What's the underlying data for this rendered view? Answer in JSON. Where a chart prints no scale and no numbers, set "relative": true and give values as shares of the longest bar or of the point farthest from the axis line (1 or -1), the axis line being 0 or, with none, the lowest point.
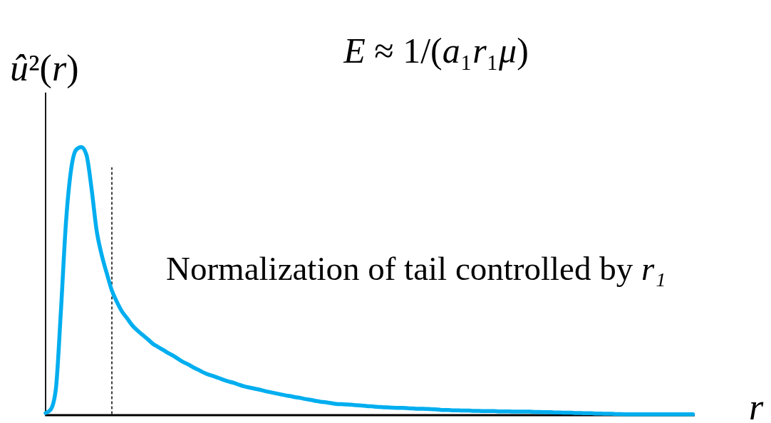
{
  "chart_data": {
    "type": "line",
    "relative": true,
    "title": "E ≈ 1/(a₁r₁μ)",
    "xlabel": "r",
    "ylabel": "û²(r)",
    "annotations": [
      "Normalization of tail controlled by r₁"
    ],
    "categories": [
      null,
      null,
      null,
      null,
      null,
      null,
      null,
      null,
      null,
      null,
      null,
      null,
      null,
      null,
      null,
      null,
      null,
      null,
      null,
      null,
      null,
      null,
      null,
      null,
      null,
      null,
      null,
      null,
      null,
      null,
      null,
      null,
      null,
      null,
      null,
      null,
      null,
      null,
      null,
      null,
      null,
      null,
      null,
      null,
      null,
      null,
      null,
      null,
      null,
      null,
      null,
      null,
      null,
      null,
      null,
      null,
      null,
      null,
      null,
      null,
      null,
      null,
      null,
      null,
      null,
      null,
      null,
      null,
      null,
      null,
      null,
      null,
      null,
      null,
      null,
      null,
      null,
      null,
      null,
      null,
      null,
      null,
      null,
      null,
      null,
      null,
      null,
      null,
      null,
      null,
      null,
      null,
      null,
      null,
      null,
      null,
      null,
      null,
      null,
      null,
      null,
      null,
      null,
      null,
      null,
      null,
      null,
      null,
      null,
      null,
      null,
      null,
      null,
      null,
      null,
      null,
      null,
      null,
      null,
      null,
      null,
      null,
      null,
      null,
      null,
      null,
      null,
      null
    ],
    "series": [
      {
        "color": "#00aeef",
        "values": [
          0.008,
          0.021,
          0.096,
          0.388,
          0.72,
          0.916,
          0.99,
          1,
          0.972,
          0.847,
          0.69,
          0.598,
          0.529,
          0.465,
          0.422,
          0.386,
          0.361,
          0.335,
          0.316,
          0.3,
          0.284,
          0.267,
          0.255,
          0.244,
          0.232,
          0.222,
          0.21,
          0.198,
          0.189,
          0.178,
          0.169,
          0.159,
          0.151,
          0.145,
          0.138,
          0.131,
          0.125,
          0.12,
          0.113,
          0.107,
          0.103,
          0.099,
          0.095,
          0.09,
          0.086,
          0.082,
          0.078,
          0.074,
          0.071,
          0.067,
          0.064,
          0.06,
          0.057,
          0.053,
          0.05,
          0.048,
          0.045,
          0.042,
          0.041,
          0.04,
          0.039,
          0.037,
          0.036,
          0.034,
          0.033,
          0.031,
          0.03,
          0.029,
          0.028,
          0.027,
          0.027,
          0.026,
          0.025,
          0.024,
          0.024,
          0.023,
          0.022,
          0.021,
          0.019,
          0.019,
          0.018,
          0.018,
          0.017,
          0.017,
          0.016,
          0.016,
          0.015,
          0.015,
          0.015,
          0.014,
          0.014,
          0.014,
          0.013,
          0.013,
          0.013,
          0.013,
          0.012,
          0.012,
          0.011,
          0.011,
          0.01,
          0.01,
          0.009,
          0.009,
          0.008,
          0.008,
          0.007,
          0.007,
          0.006,
          0.006,
          0.005,
          0.005,
          0.004,
          0.004,
          0.003,
          0.003,
          0.003,
          0.003,
          0.003,
          0.003,
          0.003,
          0.003,
          0.003,
          0.003,
          0.003,
          0.003,
          0.003,
          0.003
        ]
      }
    ]
  }
}
